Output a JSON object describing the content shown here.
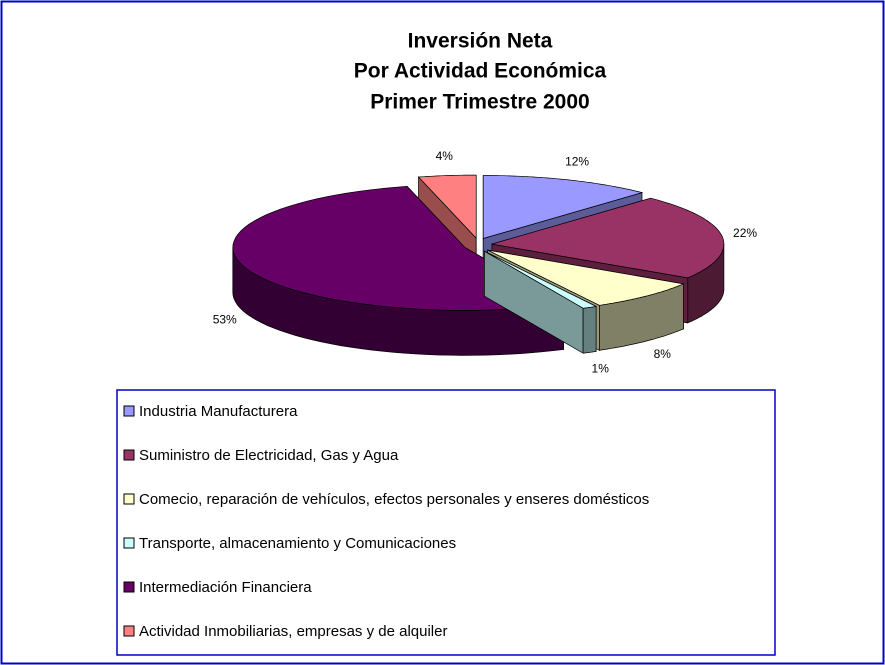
{
  "chart_data": {
    "type": "pie3d",
    "title": [
      "Inversión Neta",
      "Por Actividad Económica",
      "Primer Trimestre 2000"
    ],
    "categories": [
      "Industria Manufacturera",
      "Suministro de Electricidad, Gas y Agua",
      "Comecio, reparación de vehículos, efectos personales y enseres domésticos",
      "Transporte, almacenamiento y Comunicaciones",
      "Intermediación Financiera",
      "Actividad Inmobiliarias, empresas y de alquiler"
    ],
    "values": [
      12,
      22,
      8,
      1,
      53,
      4
    ],
    "value_labels": [
      "12%",
      "22%",
      "8%",
      "1%",
      "53%",
      "4%"
    ],
    "colors": [
      "#9999ff",
      "#993366",
      "#ffffcc",
      "#ccffff",
      "#660066",
      "#ff8080"
    ]
  }
}
